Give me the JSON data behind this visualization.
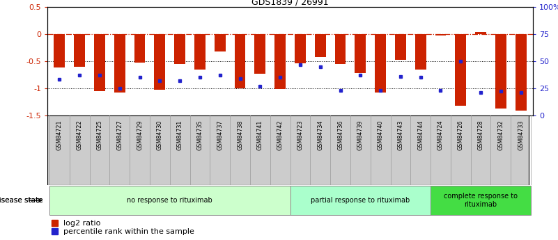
{
  "title": "GDS1839 / 26991",
  "samples": [
    "GSM84721",
    "GSM84722",
    "GSM84725",
    "GSM84727",
    "GSM84729",
    "GSM84730",
    "GSM84731",
    "GSM84735",
    "GSM84737",
    "GSM84738",
    "GSM84741",
    "GSM84742",
    "GSM84723",
    "GSM84734",
    "GSM84736",
    "GSM84739",
    "GSM84740",
    "GSM84743",
    "GSM84744",
    "GSM84724",
    "GSM84726",
    "GSM84728",
    "GSM84732",
    "GSM84733"
  ],
  "log2_ratio": [
    -0.62,
    -0.6,
    -1.05,
    -1.08,
    -0.53,
    -1.03,
    -0.55,
    -0.65,
    -0.32,
    -1.0,
    -0.73,
    -1.01,
    -0.54,
    -0.42,
    -0.55,
    -0.72,
    -1.08,
    -0.47,
    -0.65,
    -0.03,
    -1.33,
    0.04,
    -1.38,
    -1.42
  ],
  "percentile_rank": [
    33,
    37,
    37,
    25,
    35,
    32,
    32,
    35,
    37,
    34,
    27,
    35,
    47,
    45,
    23,
    37,
    23,
    36,
    35,
    23,
    50,
    21,
    22,
    21
  ],
  "groups": [
    {
      "label": "no response to rituximab",
      "start": 0,
      "end": 12,
      "color": "#ccffcc"
    },
    {
      "label": "partial response to rituximab",
      "start": 12,
      "end": 19,
      "color": "#aaffcc"
    },
    {
      "label": "complete response to\nrituximab",
      "start": 19,
      "end": 24,
      "color": "#44dd44"
    }
  ],
  "ylim_left": [
    -1.5,
    0.5
  ],
  "ylim_right": [
    0,
    100
  ],
  "bar_color": "#cc2200",
  "dot_color": "#2222cc",
  "right_ticks": [
    0,
    25,
    50,
    75,
    100
  ],
  "right_tick_labels": [
    "0",
    "25",
    "50",
    "75",
    "100%"
  ],
  "left_ticks": [
    -1.5,
    -1.0,
    -0.5,
    0.0,
    0.5
  ],
  "left_tick_labels": [
    "-1.5",
    "-1",
    "-0.5",
    "0",
    "0.5"
  ],
  "disease_state_label": "disease state",
  "legend_red": "log2 ratio",
  "legend_blue": "percentile rank within the sample",
  "sample_box_color": "#cccccc",
  "sample_box_edge": "#aaaaaa"
}
